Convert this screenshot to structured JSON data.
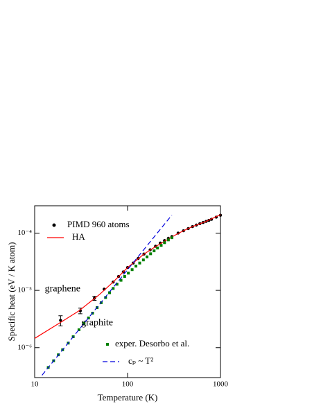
{
  "chart_data": {
    "type": "line",
    "xlabel": "Temperature  (K)",
    "ylabel": "Specific  heat  (eV / K atom)",
    "xscale": "log",
    "yscale": "log",
    "xlim": [
      10,
      1000
    ],
    "ylim": [
      3e-07,
      0.0003
    ],
    "xticks": [
      10,
      100,
      1000
    ],
    "yticks": [
      {
        "value": 1e-06,
        "label": "10⁻⁶"
      },
      {
        "value": 1e-05,
        "label": "10⁻⁵"
      },
      {
        "value": 0.0001,
        "label": "10⁻⁴"
      }
    ],
    "annotations": [
      {
        "text": "graphene",
        "x": 20,
        "y": 1.05e-05
      },
      {
        "text": "graphite",
        "x": 47,
        "y": 2.7e-06
      }
    ],
    "series": [
      {
        "name": "PIMD  960 atoms",
        "color": "#000000",
        "style": "markers",
        "x": [
          19,
          31,
          44,
          56,
          70,
          80,
          90,
          100,
          115,
          130,
          150,
          175,
          200,
          225,
          250,
          275,
          300,
          350,
          400,
          450,
          500,
          550,
          600,
          650,
          700,
          750,
          800,
          900,
          1000
        ],
        "values": [
          3e-06,
          4.4e-06,
          7.3e-06,
          1.05e-05,
          1.4e-05,
          1.75e-05,
          2.1e-05,
          2.5e-05,
          3e-05,
          3.6e-05,
          4.3e-05,
          5.1e-05,
          5.9e-05,
          6.7e-05,
          7.4e-05,
          8.1e-05,
          8.7e-05,
          0.0001,
          0.00011,
          0.00012,
          0.00013,
          0.000138,
          0.000146,
          0.000153,
          0.00016,
          0.000167,
          0.000174,
          0.00019,
          0.000205
        ],
        "errors": [
          6e-07,
          5e-07,
          6e-07,
          null,
          null,
          null,
          null,
          null,
          null,
          null,
          null,
          null,
          null,
          null,
          null,
          null,
          null,
          null,
          null,
          null,
          null,
          null,
          null,
          null,
          null,
          null,
          null,
          null,
          null
        ]
      },
      {
        "name": "HA",
        "color": "#ff0000",
        "style": "line",
        "x": [
          10,
          20,
          30,
          50,
          70,
          100,
          150,
          200,
          300,
          400,
          500,
          700,
          1000
        ],
        "values": [
          1.45e-06,
          2.9e-06,
          4.4e-06,
          8.5e-06,
          1.4e-05,
          2.5e-05,
          4.3e-05,
          5.8e-05,
          8.6e-05,
          0.00011,
          0.00013,
          0.00016,
          0.00021
        ]
      },
      {
        "name": "exper.  Desorbo et al.",
        "color": "#008000",
        "style": "squares",
        "x": [
          14,
          16,
          18,
          20,
          23,
          26,
          30,
          34,
          38,
          42,
          47,
          52,
          58,
          64,
          70,
          77,
          85,
          93,
          102,
          112,
          123,
          135,
          148,
          162,
          177,
          193,
          210,
          230,
          250,
          275,
          300
        ],
        "values": [
          4.5e-07,
          5.9e-07,
          7.5e-07,
          9.2e-07,
          1.2e-06,
          1.55e-06,
          2.05e-06,
          2.65e-06,
          3.3e-06,
          4e-06,
          5e-06,
          6.1e-06,
          7.5e-06,
          9.1e-06,
          1.08e-05,
          1.28e-05,
          1.5e-05,
          1.75e-05,
          2e-05,
          2.3e-05,
          2.65e-05,
          3e-05,
          3.4e-05,
          3.85e-05,
          4.35e-05,
          4.9e-05,
          5.5e-05,
          6.1e-05,
          6.8e-05,
          7.6e-05,
          8.3e-05
        ]
      },
      {
        "name": "cₚ ~ T²",
        "color": "#0000dd",
        "style": "dashed",
        "x": [
          12,
          300
        ],
        "values": [
          3.3e-07,
          0.000207
        ]
      }
    ]
  }
}
